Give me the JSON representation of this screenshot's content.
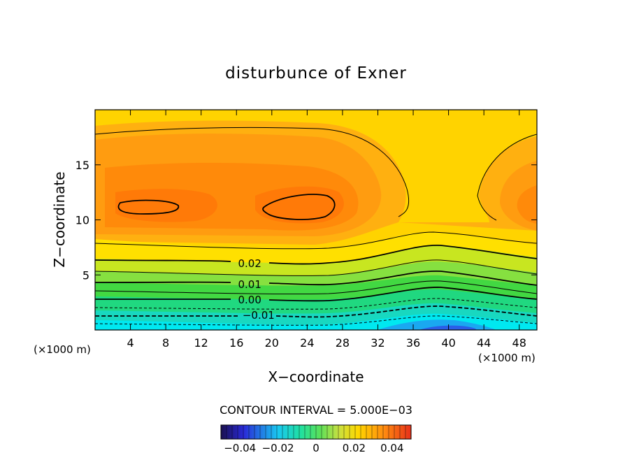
{
  "chart_data": {
    "type": "heatmap",
    "title": "disturbunce of Exner",
    "xlabel": "X−coordinate",
    "ylabel": "Z−coordinate",
    "x_unit_left": "(×1000 m)",
    "x_unit_right": "(×1000 m)",
    "xlim": [
      0,
      50
    ],
    "ylim": [
      0,
      20
    ],
    "x_ticks": [
      4,
      8,
      12,
      16,
      20,
      24,
      28,
      32,
      36,
      40,
      44,
      48
    ],
    "y_ticks": [
      5,
      10,
      15
    ],
    "contour_interval_text": "CONTOUR INTERVAL = 5.000E−03",
    "contour_labels": [
      {
        "text": "0.02",
        "x": 17.5,
        "y": 6.1
      },
      {
        "text": "0.01",
        "x": 17.5,
        "y": 4.2
      },
      {
        "text": "0.00",
        "x": 17.5,
        "y": 2.8
      },
      {
        "text": "−0.01",
        "x": 18.5,
        "y": 1.4
      }
    ],
    "colorbar": {
      "min": -0.05,
      "max": 0.05,
      "tick_labels": [
        "−0.04",
        "−0.02",
        "0",
        "0.02",
        "0.04"
      ],
      "tick_values": [
        -0.04,
        -0.02,
        0,
        0.02,
        0.04
      ]
    },
    "colors": {
      "low": "#2a4fe0",
      "cyan": "#00e8ee",
      "green": "#39d83a",
      "yellow": "#ffd900",
      "orange": "#ff9a16",
      "red_orange": "#ff6f0a"
    }
  }
}
